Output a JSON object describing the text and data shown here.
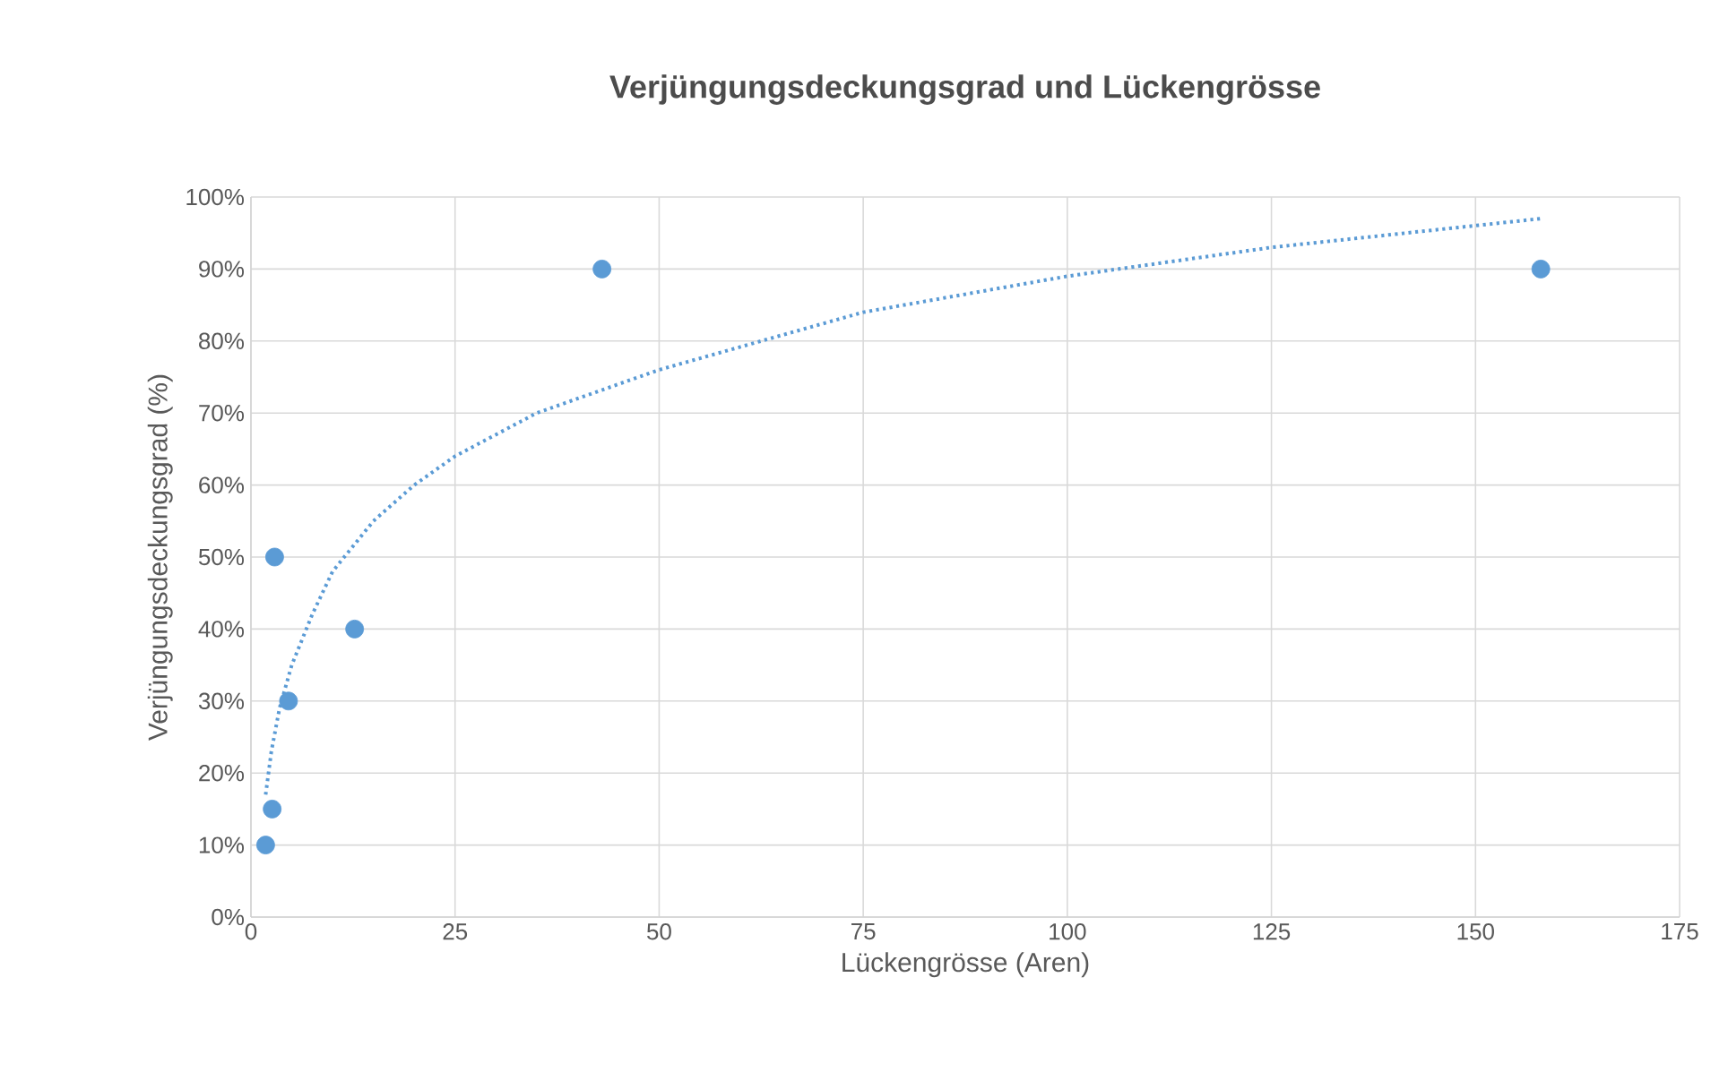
{
  "chart_data": {
    "type": "scatter",
    "title": "Verjüngungsdeckungsgrad und Lückengrösse",
    "xlabel": "Lückengrösse (Aren)",
    "ylabel": "Verjüngungsdeckungsgrad (%)",
    "xlim": [
      0,
      175
    ],
    "xticks": [
      0,
      25,
      50,
      75,
      100,
      125,
      150,
      175
    ],
    "ylim": [
      0,
      100
    ],
    "yticks": [
      {
        "value": 0,
        "label": "0%"
      },
      {
        "value": 10,
        "label": "10%"
      },
      {
        "value": 20,
        "label": "20%"
      },
      {
        "value": 30,
        "label": "30%"
      },
      {
        "value": 40,
        "label": "40%"
      },
      {
        "value": 50,
        "label": "50%"
      },
      {
        "value": 60,
        "label": "60%"
      },
      {
        "value": 70,
        "label": "70%"
      },
      {
        "value": 80,
        "label": "80%"
      },
      {
        "value": 90,
        "label": "90%"
      },
      {
        "value": 100,
        "label": "100%"
      }
    ],
    "grid": true,
    "series": [
      {
        "color": "#5b9bd5",
        "marker": "circle",
        "x": [
          1.8,
          2.6,
          2.9,
          4.6,
          12.7,
          43,
          158
        ],
        "values": [
          10,
          15,
          50,
          30,
          40,
          90,
          90
        ]
      },
      {
        "type": "line",
        "color": "#5b9bd5",
        "marker": "none",
        "line_style": "dotted",
        "x": [
          1.8,
          2.5,
          3.5,
          5,
          7.5,
          10,
          15,
          20,
          25,
          35,
          50,
          75,
          100,
          125,
          158
        ],
        "values": [
          17,
          23,
          29,
          35,
          42,
          48,
          55,
          60,
          64,
          70,
          76,
          84,
          89,
          93,
          97
        ]
      }
    ]
  }
}
